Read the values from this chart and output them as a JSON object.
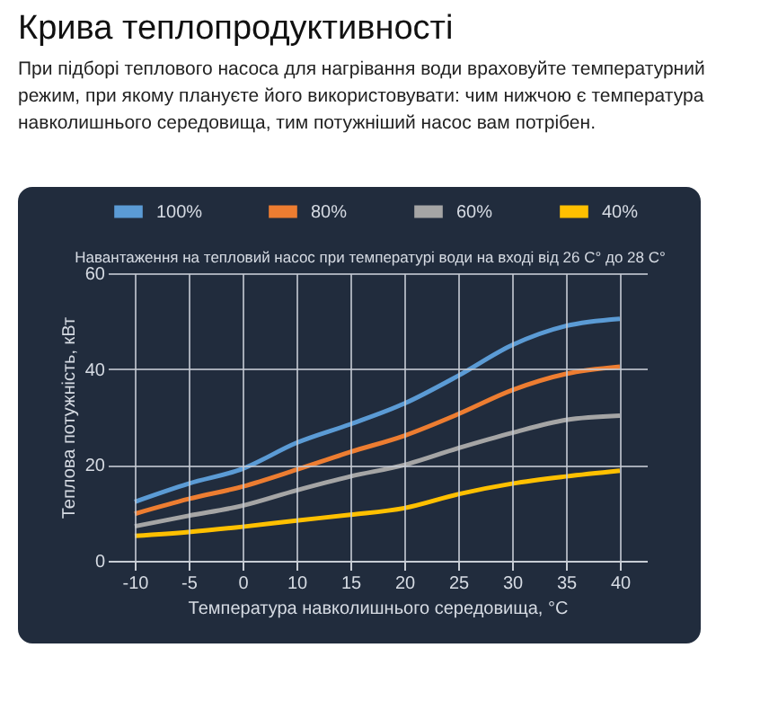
{
  "chart_data": {
    "type": "line",
    "title": "Крива теплопродуктивності",
    "subtitle": "При підборі теплового насоса для нагрівання води враховуйте температурний режим, при якому плануєте його використовувати: чим нижчою є температура навколишнього середовища, тим потужніший насос вам потрібен.",
    "annotations": [
      "Навантаження на тепловий насос при температурі води на вході від 26 C° до 28 C°"
    ],
    "xlabel": "Температура навколишнього середовища, °C",
    "ylabel": "Теплова потужність, кВт",
    "categories": [
      "-10",
      "-5",
      "0",
      "10",
      "15",
      "20",
      "25",
      "30",
      "35",
      "40"
    ],
    "series": [
      {
        "name": "100%",
        "color": "#5b9bd5",
        "values": [
          12.3,
          16.1,
          19.2,
          24.6,
          28.5,
          32.8,
          38.6,
          45,
          49,
          50.5
        ]
      },
      {
        "name": "80%",
        "color": "#ed7d31",
        "values": [
          9.8,
          12.9,
          15.5,
          19,
          22.7,
          26.1,
          30.6,
          35.6,
          39,
          40.5
        ]
      },
      {
        "name": "60%",
        "color": "#a5a5a5",
        "values": [
          7.2,
          9.4,
          11.5,
          14.7,
          17.6,
          20,
          23.5,
          26.7,
          29.4,
          30.3
        ]
      },
      {
        "name": "40%",
        "color": "#ffc000",
        "values": [
          5.2,
          6,
          7.1,
          8.4,
          9.6,
          11,
          13.9,
          16.1,
          17.6,
          18.8
        ]
      }
    ],
    "ylim": [
      0,
      60
    ],
    "yticks": [
      0,
      20,
      40,
      60
    ],
    "grid": true,
    "legend": "top",
    "marker": "none",
    "line_style": "solid"
  }
}
